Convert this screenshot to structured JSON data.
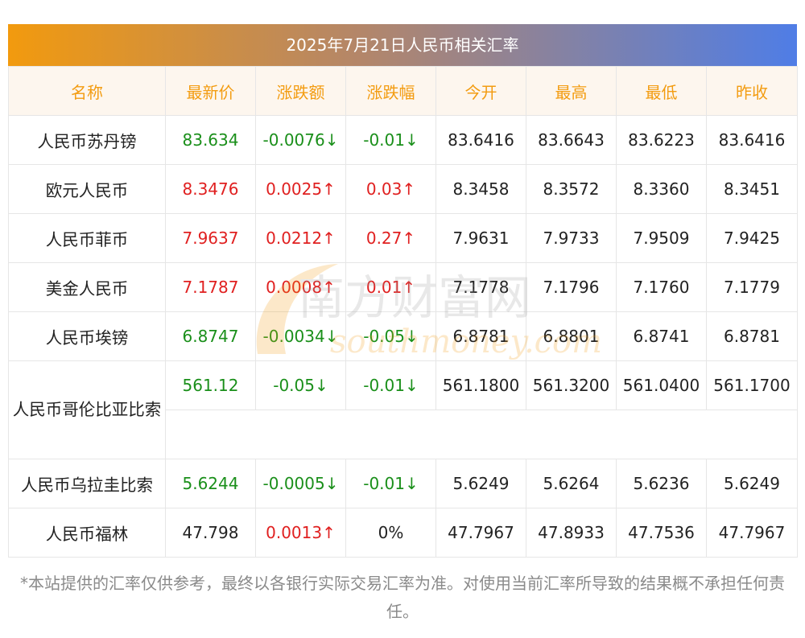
{
  "title": "2025年7月21日人民币相关汇率",
  "headers": [
    "名称",
    "最新价",
    "涨跌额",
    "涨跌幅",
    "今开",
    "最高",
    "最低",
    "昨收"
  ],
  "rows": [
    {
      "name": "人民币苏丹镑",
      "latest": "83.634",
      "change": "-0.0076↓",
      "pct": "-0.01↓",
      "open": "83.6416",
      "high": "83.6643",
      "low": "83.6223",
      "prev": "83.6416",
      "dir": "down"
    },
    {
      "name": "欧元人民币",
      "latest": "8.3476",
      "change": "0.0025↑",
      "pct": "0.03↑",
      "open": "8.3458",
      "high": "8.3572",
      "low": "8.3360",
      "prev": "8.3451",
      "dir": "up"
    },
    {
      "name": "人民币菲币",
      "latest": "7.9637",
      "change": "0.0212↑",
      "pct": "0.27↑",
      "open": "7.9631",
      "high": "7.9733",
      "low": "7.9509",
      "prev": "7.9425",
      "dir": "up"
    },
    {
      "name": "美金人民币",
      "latest": "7.1787",
      "change": "0.0008↑",
      "pct": "0.01↑",
      "open": "7.1778",
      "high": "7.1796",
      "low": "7.1760",
      "prev": "7.1779",
      "dir": "up"
    },
    {
      "name": "人民币埃镑",
      "latest": "6.8747",
      "change": "-0.0034↓",
      "pct": "-0.05↓",
      "open": "6.8781",
      "high": "6.8801",
      "low": "6.8741",
      "prev": "6.8781",
      "dir": "down"
    },
    {
      "name": "人民币哥伦比亚比索",
      "latest": "561.12",
      "change": "-0.05↓",
      "pct": "-0.01↓",
      "open": "561.1800",
      "high": "561.3200",
      "low": "561.0400",
      "prev": "561.1700",
      "dir": "down"
    },
    {
      "name": "人民币乌拉圭比索",
      "latest": "5.6244",
      "change": "-0.0005↓",
      "pct": "-0.01↓",
      "open": "5.6249",
      "high": "5.6264",
      "low": "5.6236",
      "prev": "5.6249",
      "dir": "down"
    },
    {
      "name": "人民币福林",
      "latest": "47.798",
      "change": "0.0013↑",
      "pct": "0%",
      "open": "47.7967",
      "high": "47.8933",
      "low": "47.7536",
      "prev": "47.7967",
      "dir": "mixed"
    }
  ],
  "colors": {
    "up": "#e02020",
    "down": "#1a8f1a",
    "header_text": "#f39c11"
  },
  "watermark": {
    "cn": "南方财富网",
    "en": "southmoney.com"
  },
  "footer": "*本站提供的汇率仅供参考，最终以各银行实际交易汇率为准。对使用当前汇率所导致的结果概不承担任何责任。"
}
